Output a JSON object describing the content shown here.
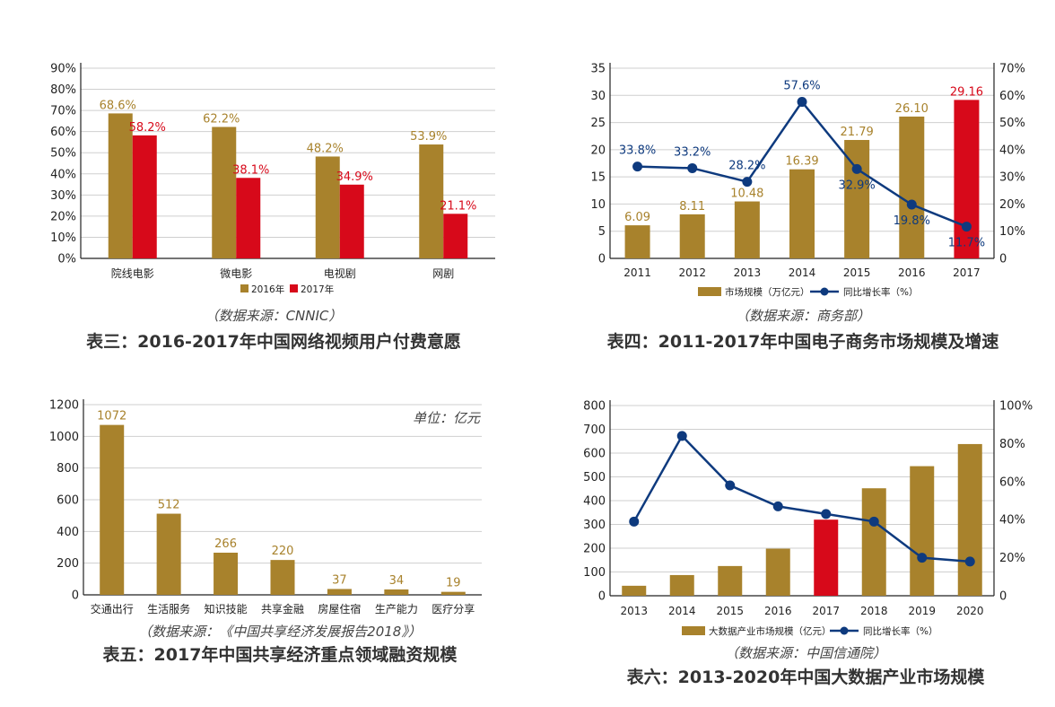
{
  "colors": {
    "gold": "#a8822c",
    "red": "#d7091a",
    "navy": "#0e3a7e"
  },
  "chart_data": [
    {
      "type": "bar",
      "categories": [
        "院线电影",
        "微电影",
        "电视剧",
        "网剧"
      ],
      "series": [
        {
          "name": "2016年",
          "values": [
            68.6,
            62.2,
            48.2,
            53.9
          ],
          "labels": [
            "68.6%",
            "62.2%",
            "48.2%",
            "53.9%"
          ]
        },
        {
          "name": "2017年",
          "values": [
            58.2,
            38.1,
            34.9,
            21.1
          ],
          "labels": [
            "58.2%",
            "38.1%",
            "34.9%",
            "21.1%"
          ]
        }
      ],
      "ylim": [
        0,
        90
      ],
      "yticks": [
        "0%",
        "10%",
        "20%",
        "30%",
        "40%",
        "50%",
        "60%",
        "70%",
        "80%",
        "90%"
      ],
      "source": "（数据来源：CNNIC）",
      "caption": "表三：2016-2017年中国网络视频用户付费意愿"
    },
    {
      "type": "bar+line",
      "categories": [
        "2011",
        "2012",
        "2013",
        "2014",
        "2015",
        "2016",
        "2017"
      ],
      "bars": {
        "name": "市场规模（万亿元）",
        "values": [
          6.09,
          8.11,
          10.48,
          16.39,
          21.79,
          26.1,
          29.16
        ],
        "labels": [
          "6.09",
          "8.11",
          "10.48",
          "16.39",
          "21.79",
          "26.10",
          "29.16"
        ],
        "highlight_index": 6
      },
      "line": {
        "name": "同比增长率（%）",
        "values": [
          33.8,
          33.2,
          28.2,
          57.6,
          32.9,
          19.8,
          11.7
        ],
        "labels": [
          "33.8%",
          "33.2%",
          "28.2%",
          "57.6%",
          "32.9%",
          "19.8%",
          "11.7%"
        ]
      },
      "ylim": [
        0,
        35
      ],
      "yticks": [
        "0",
        "5",
        "10",
        "15",
        "20",
        "25",
        "30",
        "35"
      ],
      "y2lim": [
        0,
        70
      ],
      "y2ticks": [
        "0",
        "10%",
        "20%",
        "30%",
        "40%",
        "50%",
        "60%",
        "70%"
      ],
      "source": "（数据来源：商务部）",
      "caption": "表四：2011-2017年中国电子商务市场规模及增速"
    },
    {
      "type": "bar",
      "categories": [
        "交通出行",
        "生活服务",
        "知识技能",
        "共享金融",
        "房屋住宿",
        "生产能力",
        "医疗分享"
      ],
      "values": [
        1072,
        512,
        266,
        220,
        37,
        34,
        19
      ],
      "labels": [
        "1072",
        "512",
        "266",
        "220",
        "37",
        "34",
        "19"
      ],
      "ylim": [
        0,
        1200
      ],
      "yticks": [
        "0",
        "200",
        "400",
        "600",
        "800",
        "1000",
        "1200"
      ],
      "unit": "单位：亿元",
      "source": "（数据来源：《中国共享经济发展报告2018》）",
      "caption": "表五：2017年中国共享经济重点领域融资规模"
    },
    {
      "type": "bar+line",
      "categories": [
        "2013",
        "2014",
        "2015",
        "2016",
        "2017",
        "2018",
        "2019",
        "2020"
      ],
      "bars": {
        "name": "大数据产业市场规模（亿元）",
        "values": [
          42,
          87,
          125,
          198,
          320,
          452,
          545,
          638
        ],
        "highlight_index": 4
      },
      "line": {
        "name": "同比增长率（%）",
        "values": [
          39,
          84,
          58,
          47,
          43,
          39,
          20,
          18
        ]
      },
      "ylim": [
        0,
        800
      ],
      "yticks": [
        "0",
        "100",
        "200",
        "300",
        "400",
        "500",
        "600",
        "700",
        "800"
      ],
      "y2lim": [
        0,
        100
      ],
      "y2ticks": [
        "0",
        "20%",
        "40%",
        "60%",
        "80%",
        "100%"
      ],
      "source": "（数据来源：中国信通院）",
      "caption": "表六：2013-2020年中国大数据产业市场规模"
    }
  ]
}
